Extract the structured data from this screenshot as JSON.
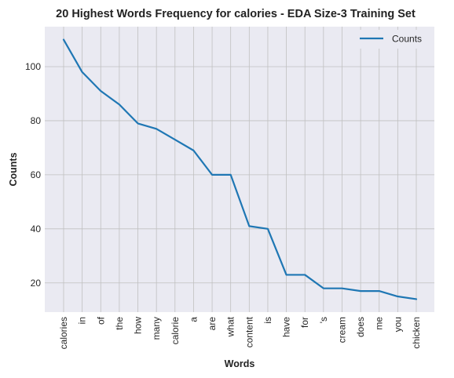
{
  "chart_data": {
    "type": "line",
    "title": "20 Highest Words Frequency for calories - EDA Size-3 Training Set",
    "xlabel": "Words",
    "ylabel": "Counts",
    "categories": [
      "calories",
      "in",
      "of",
      "the",
      "how",
      "many",
      "calorie",
      "a",
      "are",
      "what",
      "content",
      "is",
      "have",
      "for",
      "'s",
      "cream",
      "does",
      "me",
      "you",
      "chicken"
    ],
    "series": [
      {
        "name": "Counts",
        "values": [
          110,
          98,
          91,
          86,
          79,
          77,
          73,
          69,
          60,
          60,
          41,
          40,
          23,
          23,
          18,
          18,
          17,
          17,
          15,
          14
        ],
        "color": "#1f77b4"
      }
    ],
    "ylim": [
      9.2,
      114.8
    ],
    "yticks": [
      20,
      40,
      60,
      80,
      100
    ],
    "grid": true,
    "legend": "top-right",
    "background": "#eaeaf2",
    "grid_color": "#c0c0c0"
  }
}
